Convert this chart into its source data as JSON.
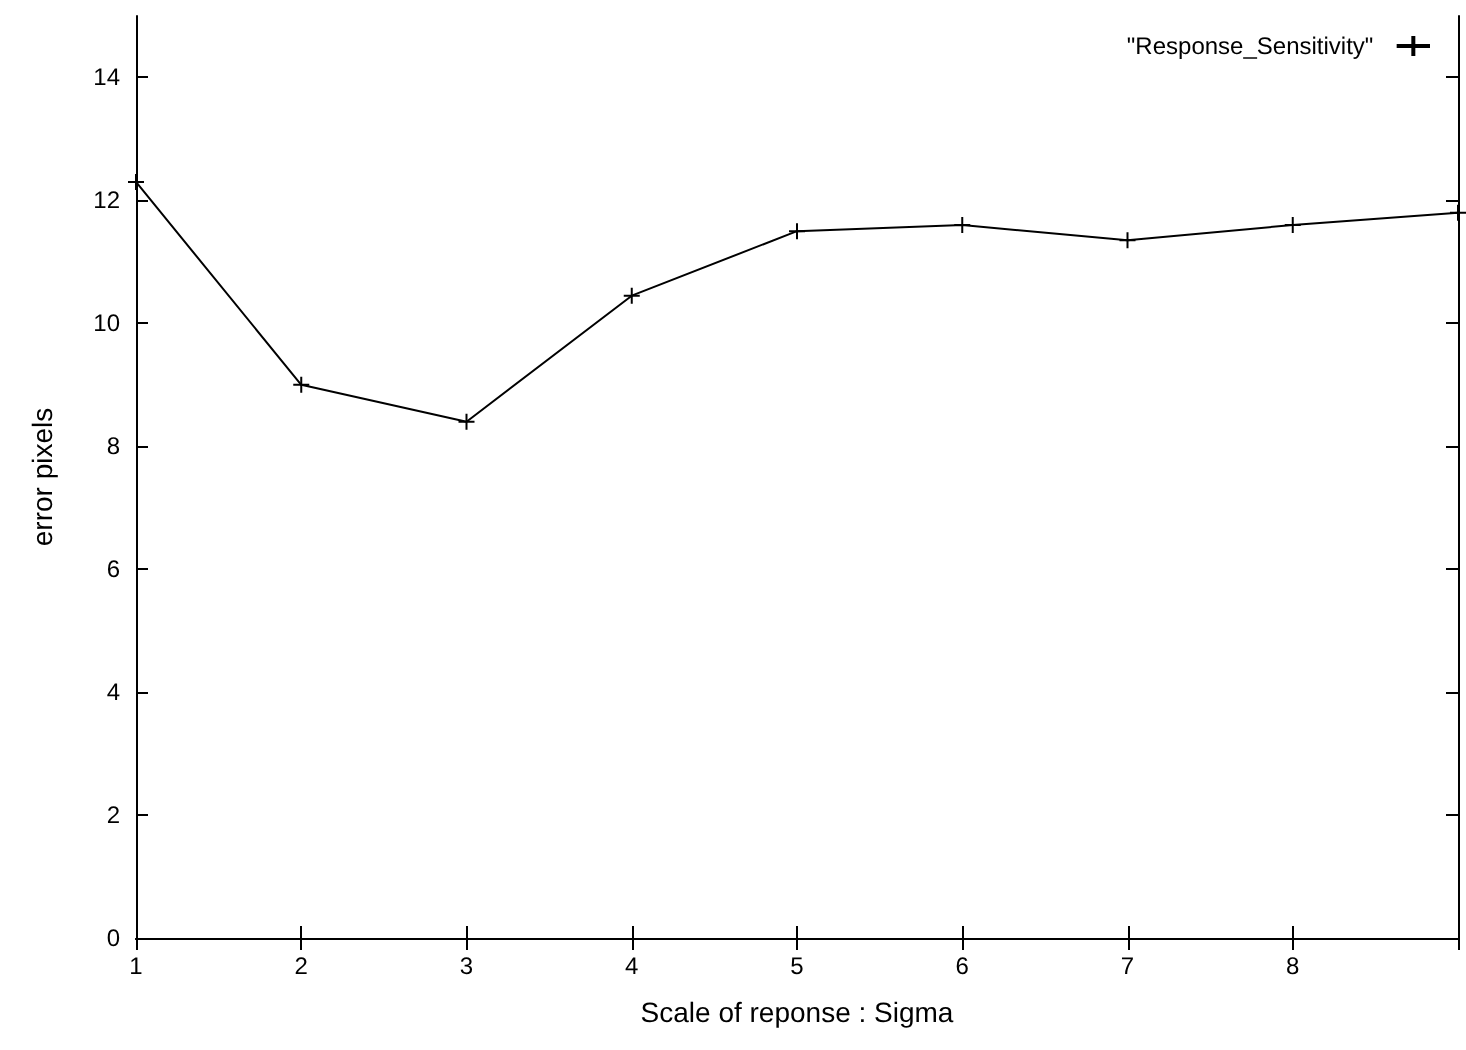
{
  "chart_data": {
    "type": "line",
    "xlabel": "Scale of reponse : Sigma",
    "ylabel": "error pixels",
    "x": [
      1,
      2,
      3,
      4,
      5,
      6,
      7,
      8,
      9
    ],
    "series": [
      {
        "name": "\"Response_Sensitivity\"",
        "color": "#000000",
        "values": [
          12.3,
          9.0,
          8.4,
          10.45,
          11.5,
          11.6,
          11.35,
          11.6,
          11.8
        ]
      }
    ],
    "xlim": [
      1,
      9
    ],
    "xticks": [
      1,
      2,
      3,
      4,
      5,
      6,
      7,
      8,
      {
        "value": 9,
        "label": null
      }
    ],
    "ylim": [
      0,
      15
    ],
    "yticks": [
      0,
      2,
      4,
      6,
      8,
      10,
      12,
      14
    ],
    "grid": false,
    "legend": "top right",
    "marker": "cross",
    "line_style": "solid"
  }
}
